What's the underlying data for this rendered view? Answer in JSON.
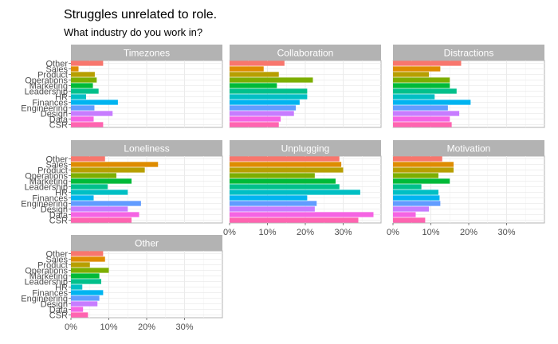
{
  "chart_data": {
    "type": "bar",
    "orientation": "horizontal",
    "title": "Struggles unrelated to role.",
    "subtitle": "What industry do you work in?",
    "categories": [
      "Other",
      "Sales",
      "Product",
      "Operations",
      "Marketing",
      "Leadership",
      "HR",
      "Finances",
      "Engineering",
      "Design",
      "Data",
      "CSR"
    ],
    "category_colors": [
      "#F8766D",
      "#DE8C00",
      "#B79F00",
      "#7CAE00",
      "#00BA38",
      "#00C08B",
      "#00BFC4",
      "#00B4F0",
      "#619CFF",
      "#C77CFF",
      "#F564E3",
      "#FF64B0"
    ],
    "xlim": [
      0,
      0.4
    ],
    "xticks": [
      0,
      0.1,
      0.2,
      0.3
    ],
    "xtick_labels": [
      "0%",
      "10%",
      "20%",
      "30%"
    ],
    "grid": true,
    "panel_columns": 3,
    "panels": [
      {
        "name": "Timezones",
        "values": [
          0.085,
          0.02,
          0.063,
          0.068,
          0.058,
          0.073,
          0.04,
          0.124,
          0.062,
          0.11,
          0.06,
          0.085
        ]
      },
      {
        "name": "Collaboration",
        "values": [
          0.145,
          0.09,
          0.13,
          0.22,
          0.125,
          0.205,
          0.205,
          0.185,
          0.175,
          0.17,
          0.135,
          0.13
        ]
      },
      {
        "name": "Distractions",
        "values": [
          0.18,
          0.125,
          0.095,
          0.15,
          0.15,
          0.168,
          0.11,
          0.205,
          0.145,
          0.175,
          0.15,
          0.155
        ]
      },
      {
        "name": "Loneliness",
        "values": [
          0.09,
          0.23,
          0.195,
          0.12,
          0.16,
          0.097,
          0.15,
          0.06,
          0.185,
          0.15,
          0.18,
          0.16
        ]
      },
      {
        "name": "Unplugging",
        "values": [
          0.29,
          0.295,
          0.3,
          0.225,
          0.28,
          0.29,
          0.345,
          0.205,
          0.23,
          0.225,
          0.38,
          0.34
        ]
      },
      {
        "name": "Motivation",
        "values": [
          0.13,
          0.16,
          0.16,
          0.12,
          0.15,
          0.075,
          0.12,
          0.123,
          0.125,
          0.095,
          0.06,
          0.085
        ]
      },
      {
        "name": "Other",
        "values": [
          0.085,
          0.09,
          0.05,
          0.1,
          0.075,
          0.08,
          0.03,
          0.085,
          0.075,
          0.07,
          0.032,
          0.045
        ]
      }
    ]
  }
}
